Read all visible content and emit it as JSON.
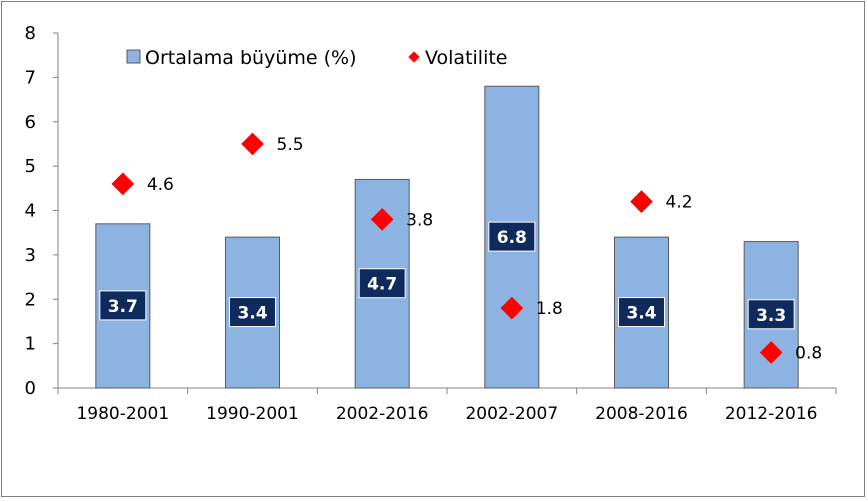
{
  "chart_data": {
    "type": "bar",
    "categories": [
      "1980-2001",
      "1990-2001",
      "2002-2016",
      "2002-2007",
      "2008-2016",
      "2012-2016"
    ],
    "series": [
      {
        "name": "Ortalama büyüme (%)",
        "kind": "bar",
        "values": [
          3.7,
          3.4,
          4.7,
          6.8,
          3.4,
          3.3
        ],
        "color": "#8db3e2"
      },
      {
        "name": "Volatilite",
        "kind": "marker",
        "values": [
          4.6,
          5.5,
          3.8,
          1.8,
          4.2,
          0.8
        ],
        "color": "#ff0000"
      }
    ],
    "ylim": [
      0,
      8
    ],
    "yticks": [
      "0",
      "1",
      "2",
      "3",
      "4",
      "5",
      "6",
      "7",
      "8"
    ],
    "grid": false,
    "legend_position": "top",
    "bar_label_bg": "#0f2a5c",
    "bar_edge": "#5a5a5a"
  }
}
